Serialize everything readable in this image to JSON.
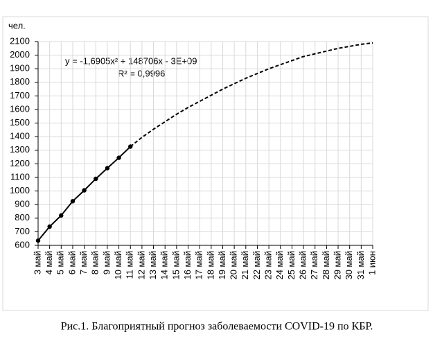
{
  "chart_data": {
    "type": "line",
    "title": "Рис.1. Благоприятный прогноз заболеваемости COVID-19 по КБР.",
    "y_label": "чел.",
    "annotations": [
      "y = -1,6905x² + 148706x - 3E+09",
      "R² = 0,9996"
    ],
    "categories": [
      "3 май",
      "4 май",
      "5 май",
      "6 май",
      "7 май",
      "8 май",
      "9 май",
      "10 май",
      "11 май",
      "12 май",
      "13 май",
      "14 май",
      "15 май",
      "16 май",
      "17 май",
      "18 май",
      "19 май",
      "20 май",
      "21 май",
      "22 май",
      "23 май",
      "24 май",
      "25 май",
      "26 май",
      "27 май",
      "28 май",
      "29 май",
      "30 май",
      "31 май",
      "1 июн"
    ],
    "series": [
      {
        "color": "#000000",
        "style": "solid",
        "markers": true,
        "values": [
          635,
          738,
          820,
          925,
          1005,
          1090,
          1168,
          1245,
          1327,
          null,
          null,
          null,
          null,
          null,
          null,
          null,
          null,
          null,
          null,
          null,
          null,
          null,
          null,
          null,
          null,
          null,
          null,
          null,
          null,
          null
        ]
      },
      {
        "color": "#000000",
        "style": "dashed",
        "markers": false,
        "values": [
          null,
          null,
          null,
          null,
          null,
          null,
          null,
          null,
          1327,
          1395,
          1455,
          1510,
          1565,
          1615,
          1660,
          1705,
          1750,
          1790,
          1830,
          1865,
          1900,
          1930,
          1960,
          1990,
          2010,
          2030,
          2050,
          2065,
          2080,
          2090
        ]
      }
    ],
    "ylim": [
      600,
      2100
    ],
    "yticks": [
      600,
      700,
      800,
      900,
      1000,
      1100,
      1200,
      1300,
      1400,
      1500,
      1600,
      1700,
      1800,
      1900,
      2000,
      2100
    ],
    "grid": true
  }
}
